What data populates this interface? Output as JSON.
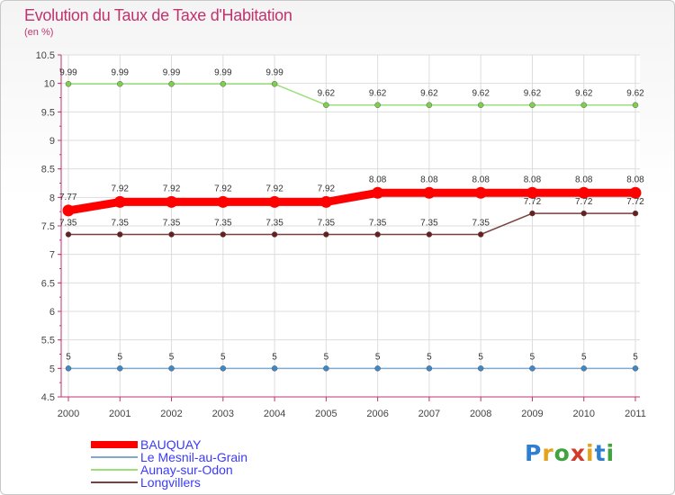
{
  "title": "Evolution du Taux de Taxe d'Habitation",
  "subtitle": "(en %)",
  "logo_text": "Proxiti",
  "chart_data": {
    "type": "line",
    "title": "Evolution du Taux de Taxe d'Habitation",
    "ylabel": "(en %)",
    "xlabel": "",
    "ylim": [
      4.5,
      10.5
    ],
    "yticks": [
      4.5,
      5,
      5.5,
      6,
      6.5,
      7,
      7.5,
      8,
      8.5,
      9,
      9.5,
      10,
      10.5
    ],
    "ytick_labels": [
      "4.5",
      "5",
      "5.5",
      "6",
      "6.5",
      "7",
      "7.5",
      "8",
      "8.5",
      "9",
      "9.5",
      "10",
      "10.5"
    ],
    "categories": [
      "2000",
      "2001",
      "2002",
      "2003",
      "2004",
      "2005",
      "2006",
      "2007",
      "2008",
      "2009",
      "2010",
      "2011"
    ],
    "grid": true,
    "series": [
      {
        "name": "BAUQUAY",
        "color": "#ff0000",
        "marker_color": "#ff0000",
        "values": [
          7.77,
          7.92,
          7.92,
          7.92,
          7.92,
          7.92,
          8.08,
          8.08,
          8.08,
          8.08,
          8.08,
          8.08
        ],
        "labels": [
          "7.77",
          "7.92",
          "7.92",
          "7.92",
          "7.92",
          "7.92",
          "8.08",
          "8.08",
          "8.08",
          "8.08",
          "8.08",
          "8.08"
        ]
      },
      {
        "name": "Le Mesnil-au-Grain",
        "color": "#7fa9d0",
        "marker_color": "#3f88c8",
        "values": [
          5,
          5,
          5,
          5,
          5,
          5,
          5,
          5,
          5,
          5,
          5,
          5
        ],
        "labels": [
          "5",
          "5",
          "5",
          "5",
          "5",
          "5",
          "5",
          "5",
          "5",
          "5",
          "5",
          "5"
        ]
      },
      {
        "name": "Aunay-sur-Odon",
        "color": "#99e077",
        "marker_color": "#7ed04c",
        "values": [
          9.99,
          9.99,
          9.99,
          9.99,
          9.99,
          9.62,
          9.62,
          9.62,
          9.62,
          9.62,
          9.62,
          9.62
        ],
        "labels": [
          "9.99",
          "9.99",
          "9.99",
          "9.99",
          "9.99",
          "9.62",
          "9.62",
          "9.62",
          "9.62",
          "9.62",
          "9.62",
          "9.62"
        ]
      },
      {
        "name": "Longvillers",
        "color": "#7a3f3f",
        "marker_color": "#6a1f1f",
        "values": [
          7.35,
          7.35,
          7.35,
          7.35,
          7.35,
          7.35,
          7.35,
          7.35,
          7.35,
          7.72,
          7.72,
          7.72
        ],
        "labels": [
          "7.35",
          "7.35",
          "7.35",
          "7.35",
          "7.35",
          "7.35",
          "7.35",
          "7.35",
          "7.35",
          "7.72",
          "7.72",
          "7.72"
        ]
      }
    ],
    "legend_position": "bottom-left"
  }
}
